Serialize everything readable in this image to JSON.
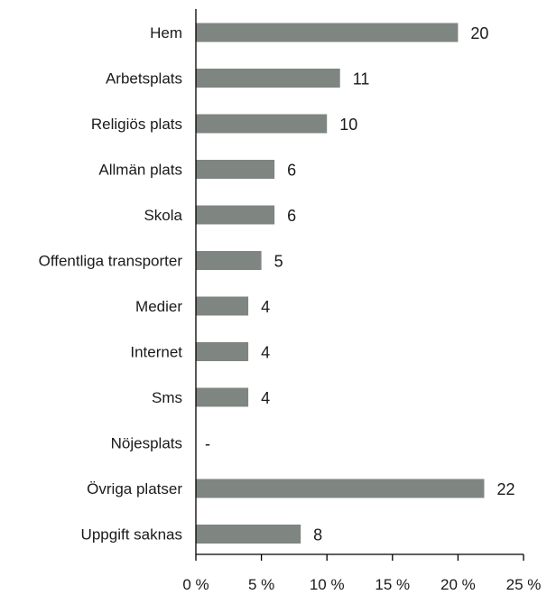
{
  "chart_data": {
    "type": "bar",
    "orientation": "horizontal",
    "categories": [
      "Hem",
      "Arbetsplats",
      "Religiös plats",
      "Allmän plats",
      "Skola",
      "Offentliga transporter",
      "Medier",
      "Internet",
      "Sms",
      "Nöjesplats",
      "Övriga platser",
      "Uppgift saknas"
    ],
    "values": [
      20,
      11,
      10,
      6,
      6,
      5,
      4,
      4,
      4,
      null,
      22,
      8
    ],
    "value_labels": [
      "20",
      "11",
      "10",
      "6",
      "6",
      "5",
      "4",
      "4",
      "4",
      "-",
      "22",
      "8"
    ],
    "xlim": [
      0,
      25
    ],
    "x_ticks": [
      0,
      5,
      10,
      15,
      20,
      25
    ],
    "x_tick_labels": [
      "0 %",
      "5 %",
      "10 %",
      "15 %",
      "20 %",
      "25 %"
    ],
    "title": "",
    "xlabel": "",
    "ylabel": "",
    "bar_color": "#7f8580",
    "grid": false,
    "legend": "none"
  }
}
